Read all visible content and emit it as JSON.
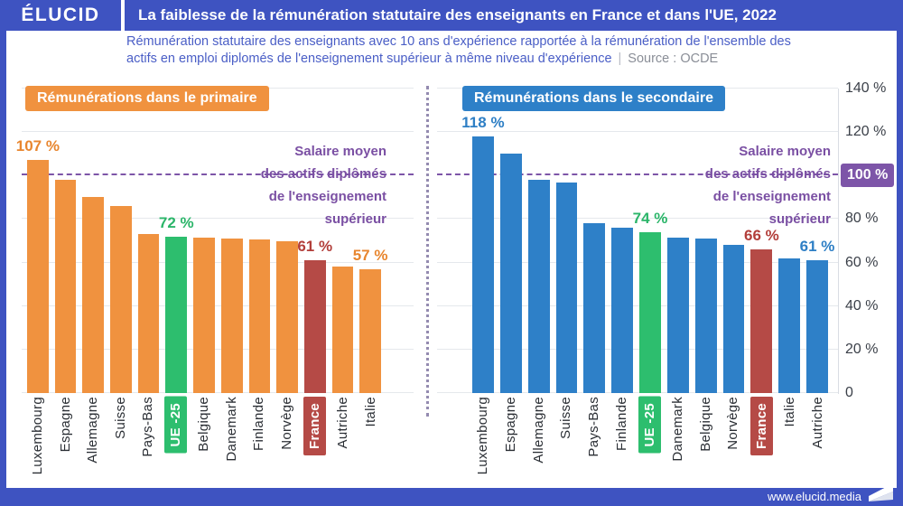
{
  "palette": {
    "frame_blue": "#3E53C1",
    "orange": "#F0923F",
    "green": "#2DBE6E",
    "red": "#B54A46",
    "blue": "#2E80C8",
    "purple": "#7D55A8",
    "orange_text": "#E8862F",
    "green_text": "#2BB569",
    "red_text": "#B23E3A",
    "blue_text": "#2E7FC5"
  },
  "header": {
    "logo": "ÉLUCID",
    "title": "La faiblesse de la rémunération statutaire des enseignants en France et dans l'UE, 2022"
  },
  "subtitle": {
    "line1": "Rémunération statutaire des enseignants avec 10 ans d'expérience rapportée à la rémunération de l'ensemble des",
    "line2": "actifs en emploi diplomés de l'enseignement supérieur à même niveau d'expérience",
    "separator": "|",
    "source": "Source : OCDE"
  },
  "reference_annotation": {
    "line1": "Salaire moyen",
    "line2": "des actifs diplômés",
    "line3": "de l'enseignement",
    "line4": "supérieur"
  },
  "y_axis": {
    "ticks": [
      {
        "label": "140 %",
        "value": 140
      },
      {
        "label": "120 %",
        "value": 120
      },
      {
        "label": "100 %",
        "value": 100,
        "highlighted": true
      },
      {
        "label": "80 %",
        "value": 80
      },
      {
        "label": "60 %",
        "value": 60
      },
      {
        "label": "40 %",
        "value": 40
      },
      {
        "label": "20 %",
        "value": 20
      },
      {
        "label": "0",
        "value": 0
      }
    ]
  },
  "chart_data": [
    {
      "type": "bar",
      "title": "Rémunérations dans le primaire",
      "title_badge_color": "#F0923F",
      "ylim": [
        0,
        140
      ],
      "reference_line": 100,
      "grid_values": [
        0,
        20,
        40,
        60,
        80,
        120,
        140
      ],
      "bars": [
        {
          "label": "Luxembourg",
          "value": 107,
          "color": "orange",
          "value_label": "107 %",
          "value_label_color": "orange_text"
        },
        {
          "label": "Espagne",
          "value": 98,
          "color": "orange"
        },
        {
          "label": "Allemagne",
          "value": 90,
          "color": "orange"
        },
        {
          "label": "Suisse",
          "value": 86,
          "color": "orange"
        },
        {
          "label": "Pays-Bas",
          "value": 73,
          "color": "orange"
        },
        {
          "label": "UE -25",
          "value": 72,
          "color": "green",
          "badge": true,
          "value_label": "72 %",
          "value_label_color": "green_text"
        },
        {
          "label": "Belgique",
          "value": 71.5,
          "color": "orange"
        },
        {
          "label": "Danemark",
          "value": 71,
          "color": "orange"
        },
        {
          "label": "Finlande",
          "value": 70.5,
          "color": "orange"
        },
        {
          "label": "Norvège",
          "value": 70,
          "color": "orange"
        },
        {
          "label": "France",
          "value": 61,
          "color": "red",
          "badge": true,
          "value_label": "61 %",
          "value_label_color": "red_text"
        },
        {
          "label": "Autriche",
          "value": 58,
          "color": "orange"
        },
        {
          "label": "Italie",
          "value": 57,
          "color": "orange",
          "value_label": "57 %",
          "value_label_color": "orange_text"
        }
      ]
    },
    {
      "type": "bar",
      "title": "Rémunérations dans le secondaire",
      "title_badge_color": "#2E80C8",
      "ylim": [
        0,
        140
      ],
      "reference_line": 100,
      "grid_values": [
        0,
        20,
        40,
        60,
        80,
        120,
        140
      ],
      "bars": [
        {
          "label": "Luxembourg",
          "value": 118,
          "color": "blue",
          "value_label": "118 %",
          "value_label_color": "blue_text"
        },
        {
          "label": "Espagne",
          "value": 110,
          "color": "blue"
        },
        {
          "label": "Allemagne",
          "value": 98,
          "color": "blue"
        },
        {
          "label": "Suisse",
          "value": 97,
          "color": "blue"
        },
        {
          "label": "Pays-Bas",
          "value": 78,
          "color": "blue"
        },
        {
          "label": "Finlande",
          "value": 76,
          "color": "blue"
        },
        {
          "label": "UE -25",
          "value": 74,
          "color": "green",
          "badge": true,
          "value_label": "74 %",
          "value_label_color": "green_text"
        },
        {
          "label": "Danemark",
          "value": 71.5,
          "color": "blue"
        },
        {
          "label": "Belgique",
          "value": 71,
          "color": "blue"
        },
        {
          "label": "Norvège",
          "value": 68,
          "color": "blue"
        },
        {
          "label": "France",
          "value": 66,
          "color": "red",
          "badge": true,
          "value_label": "66 %",
          "value_label_color": "red_text"
        },
        {
          "label": "Italie",
          "value": 62,
          "color": "blue"
        },
        {
          "label": "Autriche",
          "value": 61,
          "color": "blue",
          "value_label": "61 %",
          "value_label_color": "blue_text"
        }
      ]
    }
  ],
  "footer": {
    "url": "www.elucid.media"
  }
}
